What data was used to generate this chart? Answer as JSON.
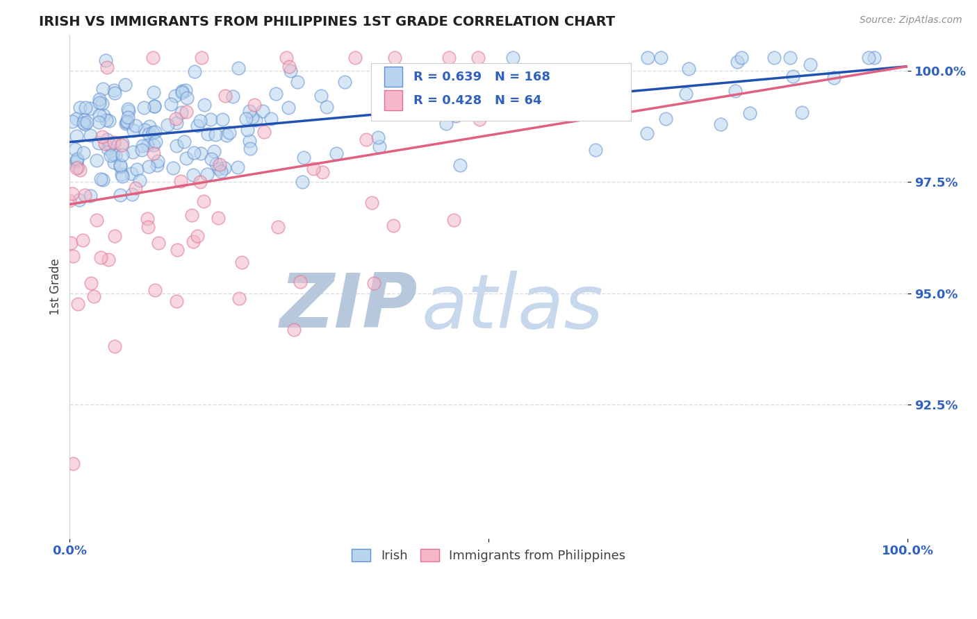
{
  "title": "IRISH VS IMMIGRANTS FROM PHILIPPINES 1ST GRADE CORRELATION CHART",
  "source_text": "Source: ZipAtlas.com",
  "ylabel": "1st Grade",
  "legend_label_blue": "Irish",
  "legend_label_pink": "Immigrants from Philippines",
  "r_blue": 0.639,
  "n_blue": 168,
  "r_pink": 0.428,
  "n_pink": 64,
  "x_min": 0.0,
  "x_max": 1.0,
  "y_min": 0.895,
  "y_max": 1.008,
  "yticks": [
    0.925,
    0.95,
    0.975,
    1.0
  ],
  "ytick_labels": [
    "92.5%",
    "95.0%",
    "97.5%",
    "100.0%"
  ],
  "color_blue": "#b8d4ee",
  "color_pink": "#f4b8c8",
  "edge_blue": "#6090d0",
  "edge_pink": "#e07090",
  "line_color_blue": "#2050b0",
  "line_color_pink": "#e06080",
  "watermark_zip": "ZIP",
  "watermark_atlas": "atlas",
  "watermark_color": "#d0dcee",
  "title_color": "#202020",
  "tick_label_color": "#3060c0",
  "grid_color": "#d8dce8",
  "background_color": "#ffffff",
  "blue_line_y0": 0.984,
  "blue_line_y1": 1.001,
  "pink_line_y0": 0.97,
  "pink_line_y1": 1.001
}
